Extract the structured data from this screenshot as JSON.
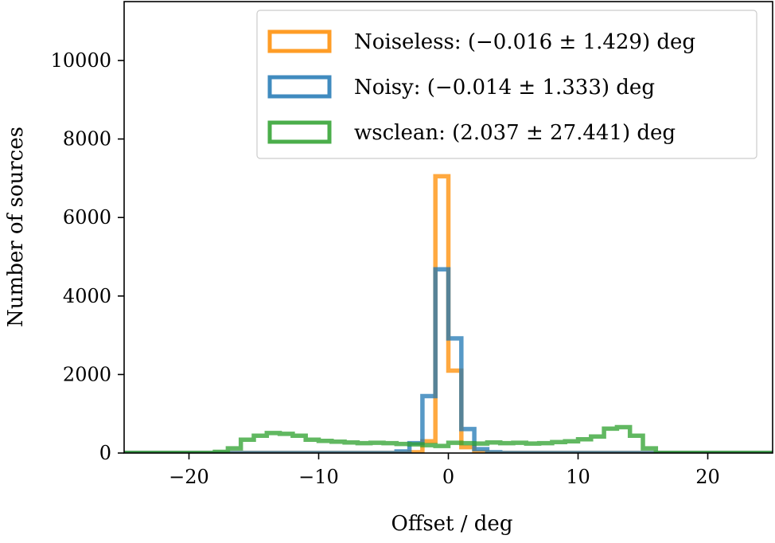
{
  "chart_data": {
    "type": "histogram",
    "xlabel": "Offset / deg",
    "ylabel": "Number of sources",
    "xlim": [
      -25,
      25
    ],
    "ylim": [
      0,
      11500
    ],
    "x_ticks": [
      -20,
      -10,
      0,
      10,
      20
    ],
    "x_tick_labels": [
      "−20",
      "−10",
      "0",
      "10",
      "20"
    ],
    "y_ticks": [
      0,
      2000,
      4000,
      6000,
      8000,
      10000
    ],
    "y_tick_labels": [
      "0",
      "2000",
      "4000",
      "6000",
      "8000",
      "10000"
    ],
    "grid": false,
    "legend_position": "upper-right",
    "series": [
      {
        "name": "Noiseless: (−0.016 ± 1.429) deg",
        "color": "#ff8c00",
        "bin_edges": [
          -25,
          -3,
          -2,
          -1,
          0,
          1,
          2,
          3,
          25
        ],
        "counts": [
          0,
          20,
          300,
          7050,
          2100,
          150,
          20,
          0
        ]
      },
      {
        "name": "Noisy: (−0.014 ± 1.333) deg",
        "color": "#1f77b4",
        "bin_edges": [
          -25,
          -4,
          -3,
          -2,
          -1,
          0,
          1,
          2,
          3,
          4,
          25
        ],
        "counts": [
          0,
          40,
          250,
          1450,
          4680,
          2920,
          610,
          100,
          20,
          0
        ]
      },
      {
        "name": "wsclean: (2.037 ± 27.441) deg",
        "color": "#2ca02c",
        "bin_edges": [
          -25,
          -18,
          -17,
          -16,
          -15,
          -14,
          -13,
          -12,
          -11,
          -10,
          -9,
          -8,
          -7,
          -6,
          -5,
          -4,
          -3,
          -2,
          -1,
          0,
          1,
          2,
          3,
          4,
          5,
          6,
          7,
          8,
          9,
          10,
          11,
          12,
          13,
          14,
          15,
          16,
          25
        ],
        "counts": [
          0,
          30,
          120,
          340,
          440,
          510,
          490,
          440,
          340,
          310,
          290,
          270,
          250,
          260,
          250,
          230,
          220,
          200,
          180,
          260,
          250,
          240,
          270,
          250,
          260,
          240,
          250,
          280,
          300,
          350,
          420,
          620,
          660,
          440,
          120,
          0
        ]
      }
    ]
  }
}
